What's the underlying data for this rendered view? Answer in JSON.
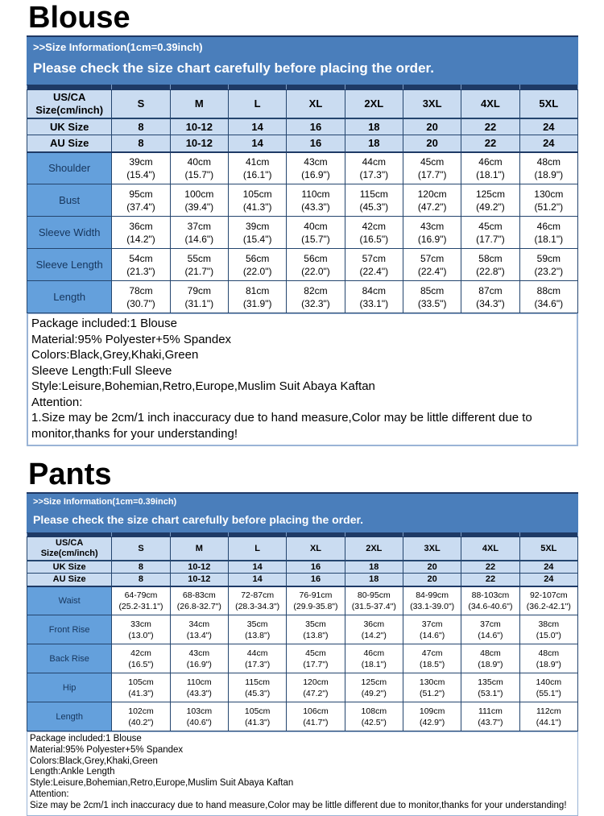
{
  "accent_colors": {
    "banner_blue": "#4a7ebb",
    "dark_navy": "#1e3a66",
    "header_light_blue": "#cadcf1",
    "label_blue": "#64a0dc",
    "label_text_navy": "#17365d",
    "notes_border_blue": "#9ab4d6"
  },
  "sections": [
    {
      "title": "Blouse",
      "banner": {
        "line1": ">>Size Information(1cm=0.39inch)",
        "line2": "Please check the size chart carefully before placing the order."
      },
      "table": {
        "corner": [
          "US/CA",
          "Size(cm/inch)"
        ],
        "sizes": [
          "S",
          "M",
          "L",
          "XL",
          "2XL",
          "3XL",
          "4XL",
          "5XL"
        ],
        "uk_label": "UK Size",
        "uk_values": [
          "8",
          "10-12",
          "14",
          "16",
          "18",
          "20",
          "22",
          "24"
        ],
        "au_label": "AU Size",
        "au_values": [
          "8",
          "10-12",
          "14",
          "16",
          "18",
          "20",
          "22",
          "24"
        ],
        "rows": [
          {
            "label": "Shoulder",
            "cm": [
              "39cm",
              "40cm",
              "41cm",
              "43cm",
              "44cm",
              "45cm",
              "46cm",
              "48cm"
            ],
            "inch": [
              "(15.4\")",
              "(15.7\")",
              "(16.1\")",
              "(16.9\")",
              "(17.3\")",
              "(17.7\")",
              "(18.1\")",
              "(18.9\")"
            ]
          },
          {
            "label": "Bust",
            "cm": [
              "95cm",
              "100cm",
              "105cm",
              "110cm",
              "115cm",
              "120cm",
              "125cm",
              "130cm"
            ],
            "inch": [
              "(37.4\")",
              "(39.4\")",
              "(41.3\")",
              "(43.3\")",
              "(45.3\")",
              "(47.2\")",
              "(49.2\")",
              "(51.2\")"
            ]
          },
          {
            "label": "Sleeve Width",
            "cm": [
              "36cm",
              "37cm",
              "39cm",
              "40cm",
              "42cm",
              "43cm",
              "45cm",
              "46cm"
            ],
            "inch": [
              "(14.2\")",
              "(14.6\")",
              "(15.4\")",
              "(15.7\")",
              "(16.5\")",
              "(16.9\")",
              "(17.7\")",
              "(18.1\")"
            ]
          },
          {
            "label": "Sleeve Length",
            "cm": [
              "54cm",
              "55cm",
              "56cm",
              "56cm",
              "57cm",
              "57cm",
              "58cm",
              "59cm"
            ],
            "inch": [
              "(21.3\")",
              "(21.7\")",
              "(22.0\")",
              "(22.0\")",
              "(22.4\")",
              "(22.4\")",
              "(22.8\")",
              "(23.2\")"
            ]
          },
          {
            "label": "Length",
            "cm": [
              "78cm",
              "79cm",
              "81cm",
              "82cm",
              "84cm",
              "85cm",
              "87cm",
              "88cm"
            ],
            "inch": [
              "(30.7\")",
              "(31.1\")",
              "(31.9\")",
              "(32.3\")",
              "(33.1\")",
              "(33.5\")",
              "(34.3\")",
              "(34.6\")"
            ]
          }
        ]
      },
      "notes": [
        "Package included:1 Blouse",
        "Material:95% Polyester+5% Spandex",
        "Colors:Black,Grey,Khaki,Green",
        "Sleeve Length:Full Sleeve",
        "Style:Leisure,Bohemian,Retro,Europe,Muslim Suit Abaya Kaftan",
        "Attention:",
        "1.Size may be 2cm/1 inch inaccuracy due to hand measure,Color may be little different due to monitor,thanks for your understanding!"
      ]
    },
    {
      "title": "Pants",
      "banner": {
        "line1": ">>Size Information(1cm=0.39inch)",
        "line2": "Please check the size chart carefully before placing the order."
      },
      "table": {
        "corner": [
          "US/CA",
          "Size(cm/inch)"
        ],
        "sizes": [
          "S",
          "M",
          "L",
          "XL",
          "2XL",
          "3XL",
          "4XL",
          "5XL"
        ],
        "uk_label": "UK Size",
        "uk_values": [
          "8",
          "10-12",
          "14",
          "16",
          "18",
          "20",
          "22",
          "24"
        ],
        "au_label": "AU Size",
        "au_values": [
          "8",
          "10-12",
          "14",
          "16",
          "18",
          "20",
          "22",
          "24"
        ],
        "rows": [
          {
            "label": "Waist",
            "cm": [
              "64-79cm",
              "68-83cm",
              "72-87cm",
              "76-91cm",
              "80-95cm",
              "84-99cm",
              "88-103cm",
              "92-107cm"
            ],
            "inch": [
              "(25.2-31.1\")",
              "(26.8-32.7\")",
              "(28.3-34.3\")",
              "(29.9-35.8\")",
              "(31.5-37.4\")",
              "(33.1-39.0\")",
              "(34.6-40.6\")",
              "(36.2-42.1\")"
            ]
          },
          {
            "label": "Front Rise",
            "cm": [
              "33cm",
              "34cm",
              "35cm",
              "35cm",
              "36cm",
              "37cm",
              "37cm",
              "38cm"
            ],
            "inch": [
              "(13.0\")",
              "(13.4\")",
              "(13.8\")",
              "(13.8\")",
              "(14.2\")",
              "(14.6\")",
              "(14.6\")",
              "(15.0\")"
            ]
          },
          {
            "label": "Back Rise",
            "cm": [
              "42cm",
              "43cm",
              "44cm",
              "45cm",
              "46cm",
              "47cm",
              "48cm",
              "48cm"
            ],
            "inch": [
              "(16.5\")",
              "(16.9\")",
              "(17.3\")",
              "(17.7\")",
              "(18.1\")",
              "(18.5\")",
              "(18.9\")",
              "(18.9\")"
            ]
          },
          {
            "label": "Hip",
            "cm": [
              "105cm",
              "110cm",
              "115cm",
              "120cm",
              "125cm",
              "130cm",
              "135cm",
              "140cm"
            ],
            "inch": [
              "(41.3\")",
              "(43.3\")",
              "(45.3\")",
              "(47.2\")",
              "(49.2\")",
              "(51.2\")",
              "(53.1\")",
              "(55.1\")"
            ]
          },
          {
            "label": "Length",
            "cm": [
              "102cm",
              "103cm",
              "105cm",
              "106cm",
              "108cm",
              "109cm",
              "111cm",
              "112cm"
            ],
            "inch": [
              "(40.2\")",
              "(40.6\")",
              "(41.3\")",
              "(41.7\")",
              "(42.5\")",
              "(42.9\")",
              "(43.7\")",
              "(44.1\")"
            ]
          }
        ]
      },
      "notes": [
        "Package included:1 Blouse",
        "Material:95% Polyester+5% Spandex",
        "Colors:Black,Grey,Khaki,Green",
        "Length:Ankle Length",
        "Style:Leisure,Bohemian,Retro,Europe,Muslim Suit Abaya Kaftan",
        "Attention:",
        "Size may be 2cm/1 inch inaccuracy due to hand measure,Color may be little different due to monitor,thanks for your understanding!"
      ]
    }
  ]
}
